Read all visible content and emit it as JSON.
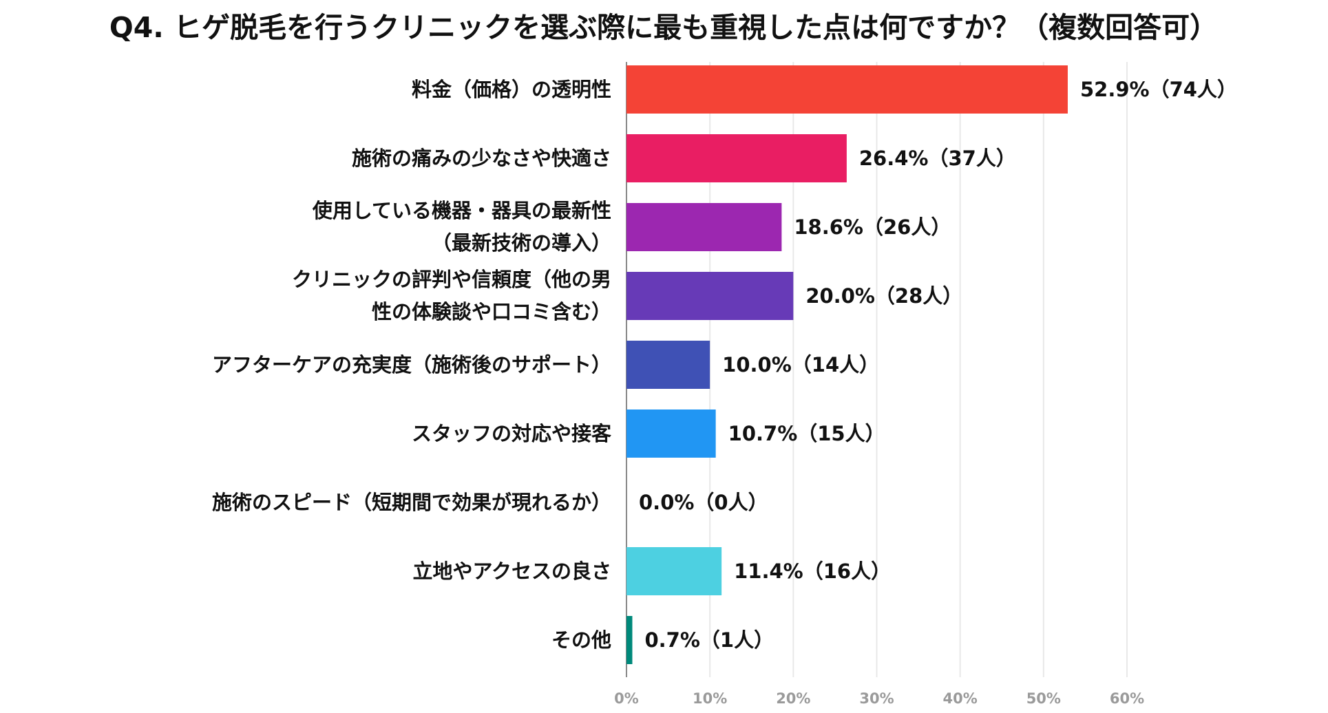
{
  "chart_data": {
    "type": "bar",
    "orientation": "horizontal",
    "title": "Q4. ヒゲ脱毛を行うクリニックを選ぶ際に最も重視した点は何ですか？（複数回答可）",
    "categories": [
      [
        "料金（価格）の透明性"
      ],
      [
        "施術の痛みの少なさや快適さ"
      ],
      [
        "使用している機器・器具の最新性",
        "（最新技術の導入）"
      ],
      [
        "クリニックの評判や信頼度（他の男",
        "性の体験談や口コミ含む）"
      ],
      [
        "アフターケアの充実度（施術後のサポート）"
      ],
      [
        "スタッフの対応や接客"
      ],
      [
        "施術のスピード（短期間で効果が現れるか）"
      ],
      [
        "立地やアクセスの良さ"
      ],
      [
        "その他"
      ]
    ],
    "values": [
      52.9,
      26.4,
      18.6,
      20.0,
      10.0,
      10.7,
      0.0,
      11.4,
      0.7
    ],
    "value_labels": [
      "52.9%（74人）",
      "26.4%（37人）",
      "18.6%（26人）",
      "20.0%（28人）",
      "10.0%（14人）",
      "10.7%（15人）",
      "0.0%（0人）",
      "11.4%（16人）",
      "0.7%（1人）"
    ],
    "colors": [
      "#f44336",
      "#e91e63",
      "#9c27b0",
      "#673ab7",
      "#3f51b5",
      "#2196f3",
      "#00bcd4",
      "#4dd0e1",
      "#00897b"
    ],
    "xlim": [
      0,
      60
    ],
    "xticks": [
      0,
      10,
      20,
      30,
      40,
      50,
      60
    ],
    "xtick_labels": [
      "0%",
      "10%",
      "20%",
      "30%",
      "40%",
      "50%",
      "60%"
    ],
    "grid": true,
    "legend": "none"
  }
}
